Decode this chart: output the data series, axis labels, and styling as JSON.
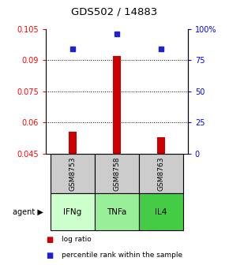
{
  "title": "GDS502 / 14883",
  "samples": [
    "GSM8753",
    "GSM8758",
    "GSM8763"
  ],
  "agents": [
    "IFNg",
    "TNFa",
    "IL4"
  ],
  "x_positions": [
    1,
    2,
    3
  ],
  "log_ratio_values": [
    0.0555,
    0.092,
    0.053
  ],
  "log_ratio_base": 0.045,
  "percentile_values": [
    84,
    96,
    84
  ],
  "ylim": [
    0.045,
    0.105
  ],
  "yticks_left": [
    0.045,
    0.06,
    0.075,
    0.09,
    0.105
  ],
  "yticks_right_vals": [
    0,
    25,
    50,
    75,
    100
  ],
  "yticks_right_labels": [
    "0",
    "25",
    "50",
    "75",
    "100%"
  ],
  "bar_color": "#cc0000",
  "dot_color": "#2222cc",
  "agent_colors": [
    "#ccffcc",
    "#99ee99",
    "#44cc44"
  ],
  "sample_bg_color": "#cccccc",
  "bar_width": 0.18
}
